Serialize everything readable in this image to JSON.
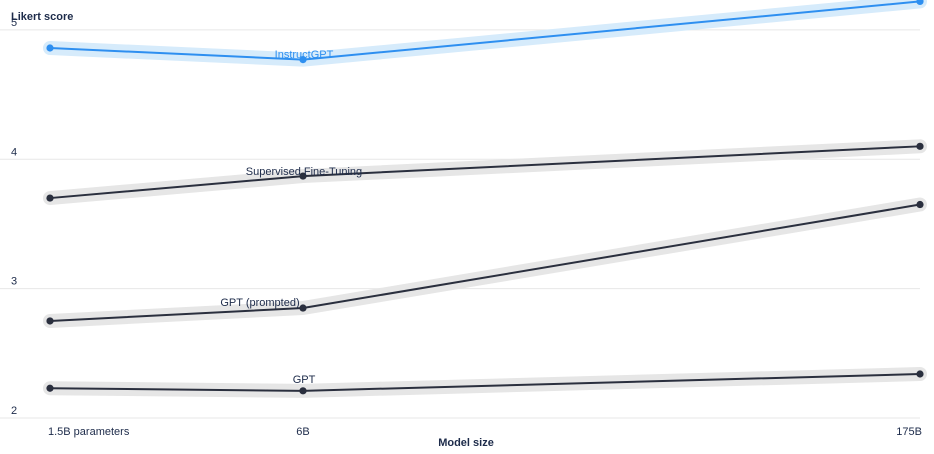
{
  "chart_data": {
    "type": "line",
    "title": "",
    "ylabel": "Likert score",
    "xlabel": "Model size",
    "categories": [
      "1.5B parameters",
      "6B",
      "175B"
    ],
    "x": [
      1.5,
      6,
      175
    ],
    "ylim": [
      2,
      5.2
    ],
    "yticks": [
      2,
      3,
      4,
      5
    ],
    "grid": true,
    "legend": "inline labels",
    "series": [
      {
        "name": "InstructGPT",
        "values": [
          4.86,
          4.77,
          5.22
        ],
        "color": "#2e8ff0",
        "band": "#d6ebfb"
      },
      {
        "name": "Supervised Fine-Tuning",
        "values": [
          3.7,
          3.87,
          4.1
        ],
        "color": "#2a2f3e",
        "band": "#e6e6e6"
      },
      {
        "name": "GPT (prompted)",
        "values": [
          2.75,
          2.85,
          3.65
        ],
        "color": "#2a2f3e",
        "band": "#e6e6e6"
      },
      {
        "name": "GPT",
        "values": [
          2.23,
          2.21,
          2.34
        ],
        "color": "#2a2f3e",
        "band": "#e6e6e6"
      }
    ],
    "label_color": "#1d2b4a",
    "grid_color": "#e7e7e7"
  }
}
